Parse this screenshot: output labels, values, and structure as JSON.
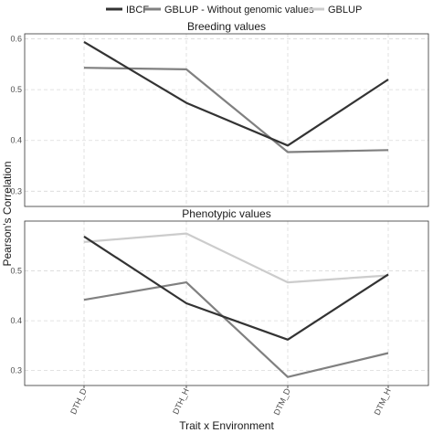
{
  "chart_data": {
    "type": "line",
    "xlabel": "Trait x Environment",
    "ylabel": "Pearson's Correlation",
    "categories": [
      "DTH_D",
      "DTH_H",
      "DTM_D",
      "DTM_H"
    ],
    "grid": true,
    "legend_position": "top",
    "legend": [
      {
        "name": "IBCF",
        "color": "#333333"
      },
      {
        "name": "GBLUP - Without genomic values",
        "color": "#808080"
      },
      {
        "name": "GBLUP",
        "color": "#cccccc"
      }
    ],
    "panels": [
      {
        "title": "Breeding values",
        "ylim": [
          0.27,
          0.61
        ],
        "yticks": [
          "0.3",
          "0.4",
          "0.5",
          "0.6"
        ],
        "series": [
          {
            "name": "GBLUP - Without genomic values",
            "color": "#808080",
            "values": [
              0.543,
              0.54,
              0.377,
              0.381
            ]
          },
          {
            "name": "IBCF",
            "color": "#333333",
            "values": [
              0.594,
              0.474,
              0.39,
              0.52
            ]
          }
        ]
      },
      {
        "title": "Phenotypic values",
        "ylim": [
          0.27,
          0.6
        ],
        "yticks": [
          "0.3",
          "0.4",
          "0.5"
        ],
        "series": [
          {
            "name": "GBLUP",
            "color": "#cccccc",
            "values": [
              0.558,
              0.575,
              0.477,
              0.491
            ]
          },
          {
            "name": "GBLUP - Without genomic values",
            "color": "#808080",
            "values": [
              0.442,
              0.477,
              0.287,
              0.335
            ]
          },
          {
            "name": "IBCF",
            "color": "#333333",
            "values": [
              0.569,
              0.435,
              0.362,
              0.493
            ]
          }
        ]
      }
    ]
  }
}
